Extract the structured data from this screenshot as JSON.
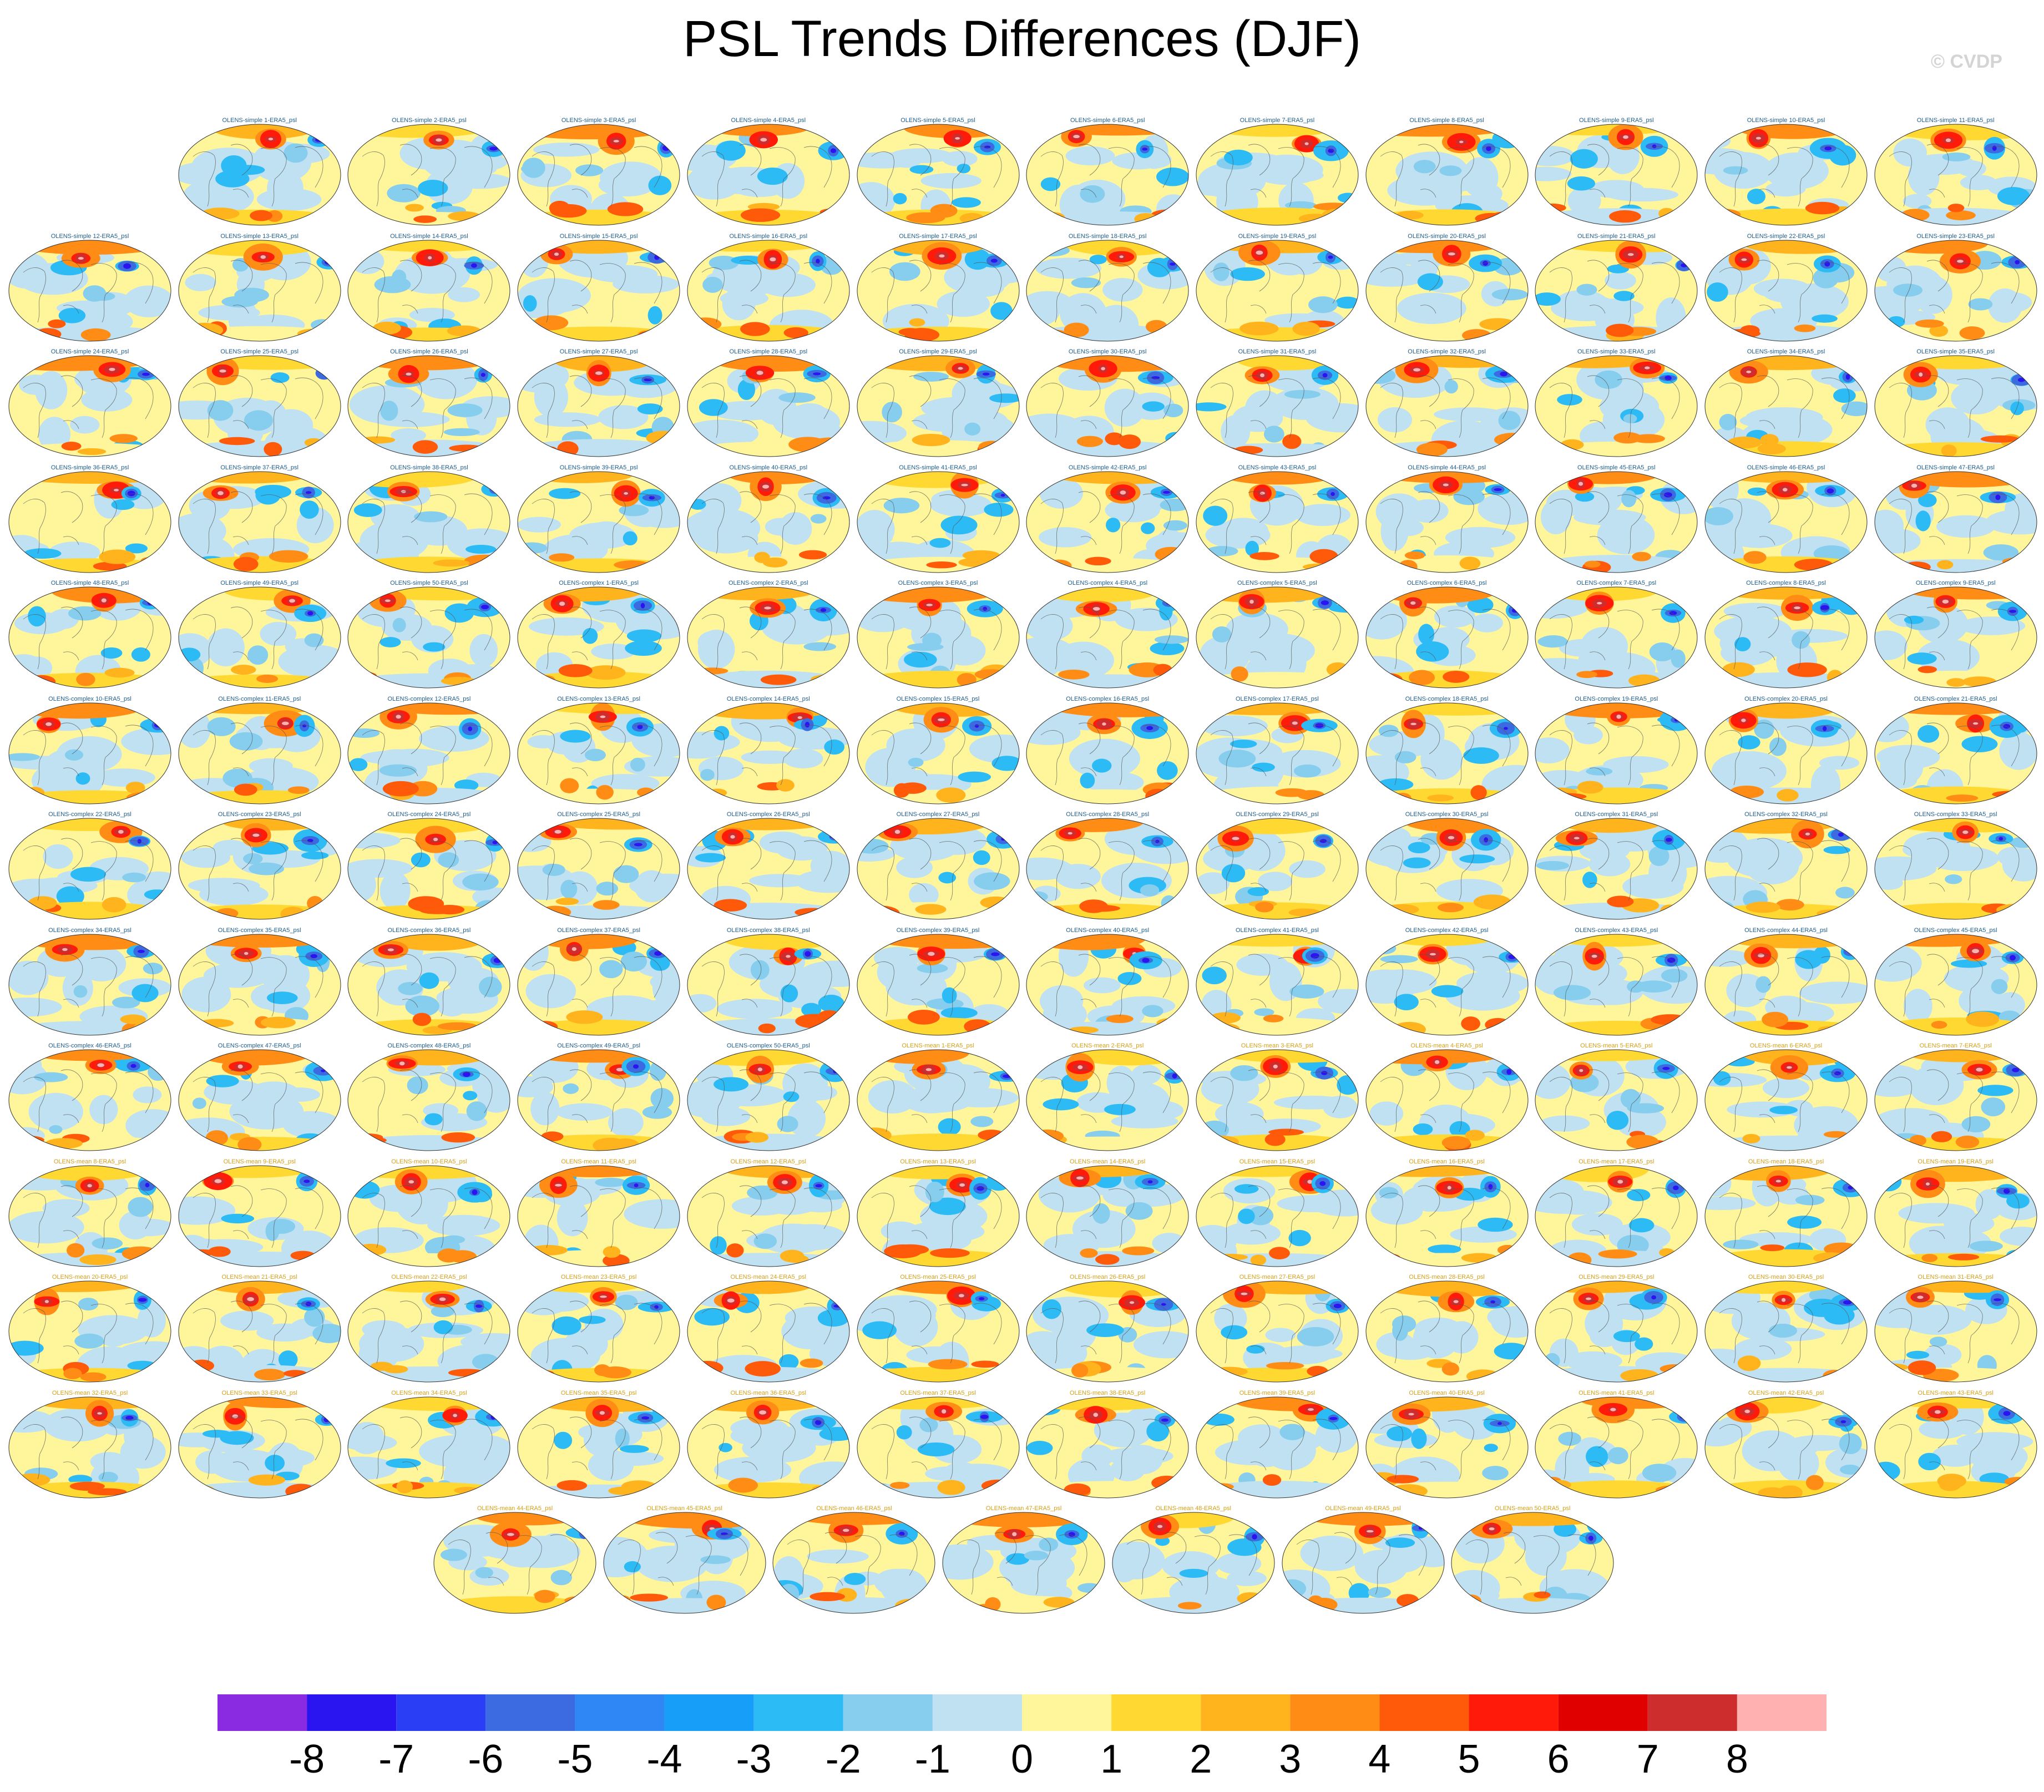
{
  "chart_data": {
    "type": "heatmap",
    "title": "PSL Trends Differences (DJF)",
    "watermark": "© CVDP",
    "panel_suffix": "-ERA5_psl",
    "groups": [
      {
        "name": "OLENS-simple",
        "count": 50,
        "title_color": "#1f5e8c"
      },
      {
        "name": "OLENS-complex",
        "count": 50,
        "title_color": "#1f5e8c"
      },
      {
        "name": "OLENS-mean",
        "count": 50,
        "title_color": "#d4a017"
      }
    ],
    "panel_rows": [
      11,
      12,
      12,
      12,
      12,
      12,
      12,
      12,
      12,
      12,
      12,
      12,
      7
    ],
    "colorbar": {
      "ticks": [
        -8,
        -7,
        -6,
        -5,
        -4,
        -3,
        -2,
        -1,
        0,
        1,
        2,
        3,
        4,
        5,
        6,
        7,
        8
      ],
      "colors": [
        "#8a2be2",
        "#2a14f0",
        "#2a3ef5",
        "#3c6ae0",
        "#2f86f5",
        "#169ef9",
        "#2dbbf5",
        "#86cdee",
        "#bfe1f2",
        "#fff59a",
        "#ffd832",
        "#ffb41e",
        "#ff8c14",
        "#ff5a0a",
        "#ff1a0a",
        "#e00000",
        "#cd2d2d",
        "#ffb1b1"
      ]
    }
  }
}
